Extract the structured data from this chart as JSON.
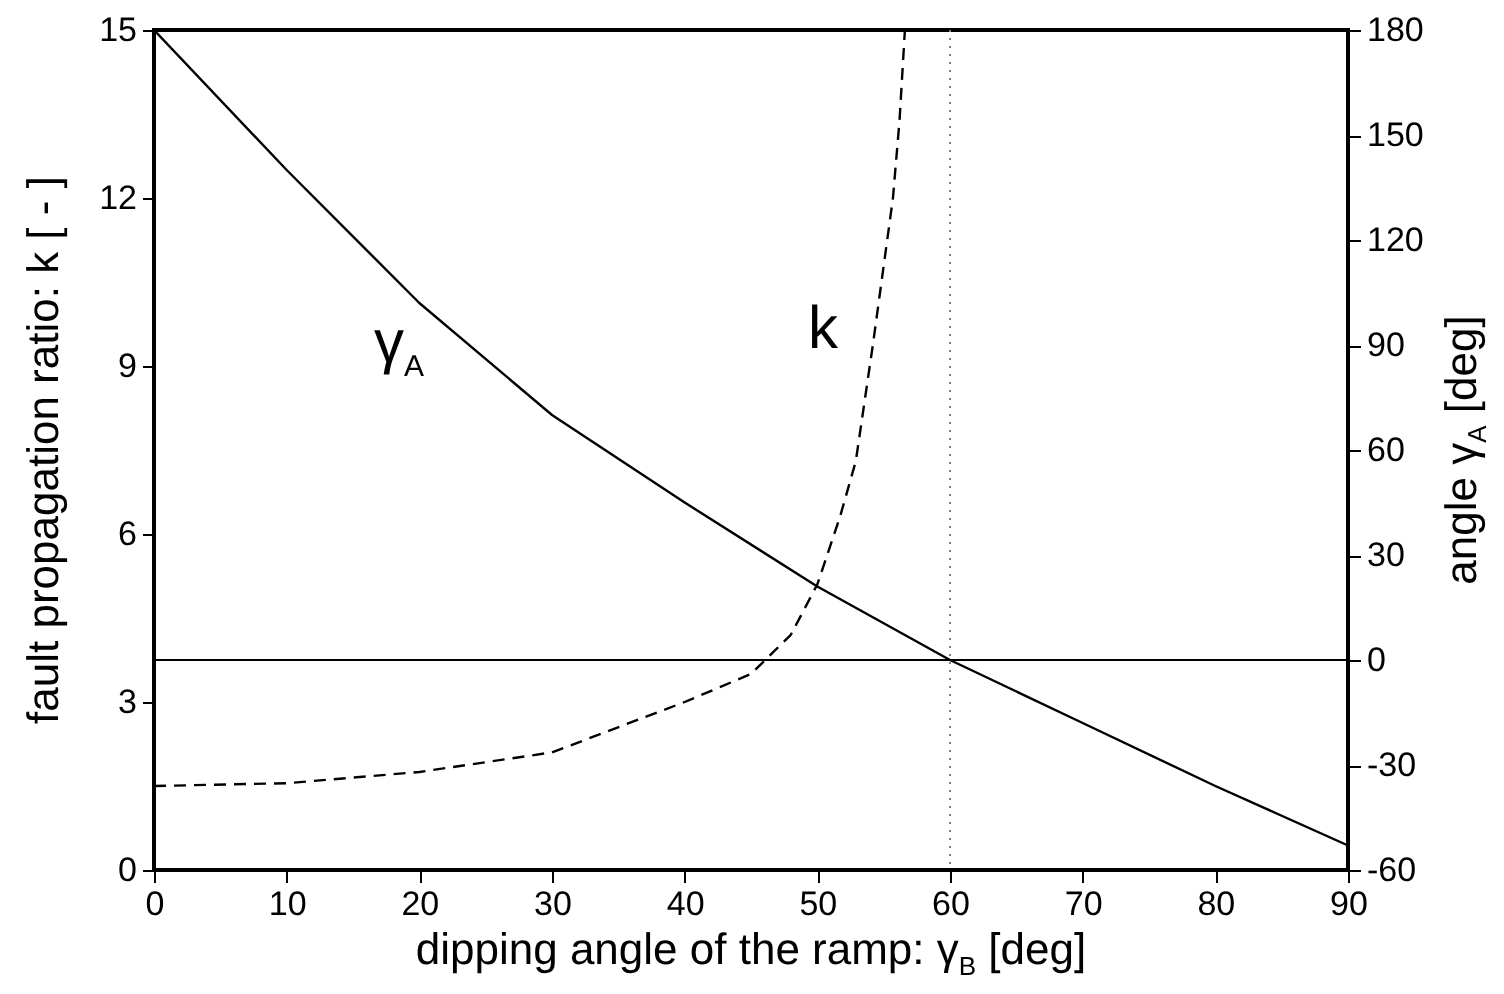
{
  "chart_data": {
    "type": "line",
    "xlabel": "dipping angle of the ramp:  γ$_{B}$ [deg]",
    "ylabel": "fault propagation ratio: k [ - ]",
    "y2label": "angle  γ$_{A}$ [deg]",
    "xlim": [
      0,
      90
    ],
    "xticks": [
      0,
      10,
      20,
      30,
      40,
      50,
      60,
      70,
      80,
      90
    ],
    "ylim": [
      0,
      15
    ],
    "yticks": [
      0,
      3,
      6,
      9,
      12,
      15
    ],
    "y2lim": [
      -60,
      180
    ],
    "y2ticks": [
      -60,
      -30,
      0,
      30,
      60,
      90,
      120,
      150,
      180
    ],
    "grid": false,
    "legend": false,
    "marker": "none",
    "series": [
      {
        "name": "k",
        "color": "#000000",
        "line_style": "dashed",
        "x": [
          0,
          10,
          20,
          30,
          40,
          45,
          48,
          50,
          51.7,
          52.9,
          54.2,
          55.7,
          56.2,
          56.6
        ],
        "values": [
          1.5,
          1.55,
          1.75,
          2.1,
          3.0,
          3.5,
          4.2,
          5.1,
          6.3,
          7.3,
          9.4,
          12,
          13.4,
          15
        ]
      },
      {
        "name": "γ$_{A}$",
        "color": "#000000",
        "line_style": "solid",
        "axis": "y2",
        "x": [
          0,
          10,
          20,
          30,
          40,
          50,
          60,
          70,
          80,
          90
        ],
        "values": [
          180,
          140,
          102,
          70,
          45,
          21,
          0,
          -18,
          -36,
          -53
        ]
      }
    ],
    "ref_lines": [
      {
        "axis": "x",
        "value": 60,
        "color": "#808080",
        "line_style": "dotted"
      },
      {
        "axis": "y2",
        "value": 0,
        "color": "#000000",
        "line_style": "solid"
      }
    ]
  }
}
